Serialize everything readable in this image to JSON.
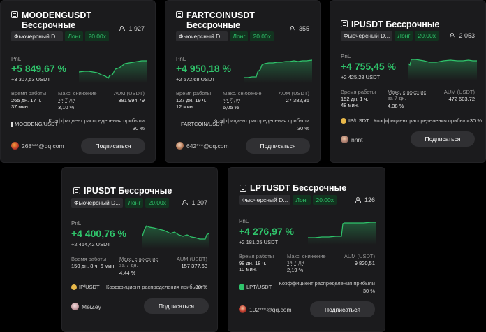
{
  "common": {
    "pnl_label": "PnL",
    "work_time_label": "Время работы",
    "drawdown_label": "Макс. снижение",
    "drawdown_sub": "за 7 дн.",
    "aum_label": "AUM (USDT)",
    "profit_share_label": "Коэффициент распределения прибыли",
    "subscribe_label": "Подписаться",
    "type_tag": "Фьючерсный D...",
    "direction_tag": "Лонг"
  },
  "cards": [
    {
      "title_line1": "MOODENGUSDT",
      "title_line2": "Бессрочные",
      "followers": "1 927",
      "leverage": "20.00x",
      "pnl_pct": "+5 849,67 %",
      "pnl_usdt": "+3 307,53 USDT",
      "work_time_line1": "265 дн. 17 ч.",
      "work_time_line2": "37 мин.",
      "drawdown": "3,10 %",
      "aum": "381 994,79",
      "coin": "MOODENG/USDT",
      "profit_share": "30 %",
      "user": "268***@qq.com"
    },
    {
      "title_line1": "FARTCOINUSDT",
      "title_line2": "Бессрочные",
      "followers": "355",
      "leverage": "20.00x",
      "pnl_pct": "+4 950,18 %",
      "pnl_usdt": "+2 572,68 USDT",
      "work_time_line1": "127 дн. 19 ч.",
      "work_time_line2": "12 мин.",
      "drawdown": "6,05 %",
      "aum": "27 382,35",
      "coin": "FARTCOIN/USDT",
      "profit_share": "30 %",
      "user": "642***@qq.com"
    },
    {
      "title_line1": "IPUSDT Бессрочные",
      "followers": "2 053",
      "leverage": "20.00x",
      "pnl_pct": "+4 755,45 %",
      "pnl_usdt": "+2 425,28 USDT",
      "work_time_line1": "152 дн. 1 ч.",
      "work_time_line2": "48 мин.",
      "drawdown": "4,38 %",
      "aum": "472 603,72",
      "coin": "IP/USDT",
      "profit_share": "30 %",
      "user": "nnnt"
    },
    {
      "title_line1": "IPUSDT Бессрочные",
      "followers": "1 207",
      "leverage": "20.00x",
      "pnl_pct": "+4 400,76 %",
      "pnl_usdt": "+2 464,42 USDT",
      "work_time_line1": "150 дн. 8 ч. 6 мин.",
      "drawdown": "4,44 %",
      "aum": "157 377,63",
      "coin": "IP/USDT",
      "profit_share": "30 %",
      "user": "MeiZey"
    },
    {
      "title_line1": "LPTUSDT Бессрочные",
      "followers": "126",
      "leverage": "20.00x",
      "pnl_pct": "+4 276,97 %",
      "pnl_usdt": "+2 181,25 USDT",
      "work_time_line1": "98 дн. 18 ч.",
      "work_time_line2": "10 мин.",
      "drawdown": "2,19 %",
      "aum": "9 820,51",
      "coin": "LPT/USDT",
      "profit_share": "30 %",
      "user": "102***@qq.com"
    }
  ],
  "colors": {
    "positive": "#2fc46b",
    "card_bg": "#1b1b1d",
    "button_bg": "#303033"
  }
}
